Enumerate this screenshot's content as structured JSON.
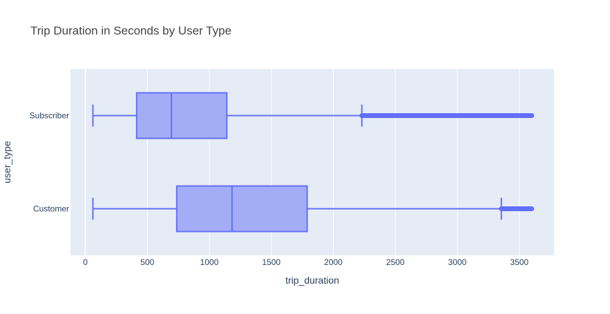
{
  "chart_data": {
    "type": "box",
    "orientation": "horizontal",
    "title": "Trip Duration in Seconds by User Type",
    "xlabel": "trip_duration",
    "ylabel": "user_type",
    "xlim": [
      -120,
      3780
    ],
    "xticks": [
      0,
      500,
      1000,
      1500,
      2000,
      2500,
      3000,
      3500
    ],
    "xtick_labels": [
      "0",
      "500",
      "1000",
      "1500",
      "2000",
      "2500",
      "3000",
      "3500"
    ],
    "categories": [
      "Subscriber",
      "Customer"
    ],
    "grid": true,
    "boxes": [
      {
        "category": "Subscriber",
        "whisker_low": 61,
        "q1": 414,
        "median": 694,
        "q3": 1141,
        "whisker_high": 2230,
        "outliers_range": [
          2230,
          3600
        ]
      },
      {
        "category": "Customer",
        "whisker_low": 61,
        "q1": 737,
        "median": 1183,
        "q3": 1789,
        "whisker_high": 3355,
        "outliers_range": [
          3355,
          3600
        ]
      }
    ]
  },
  "colors": {
    "plot_bg": "#e5ecf6",
    "box_fill": "#a3adf6",
    "box_line": "#636efa",
    "grid": "#ffffff",
    "text": "#2a3f5f",
    "title": "#444444"
  }
}
